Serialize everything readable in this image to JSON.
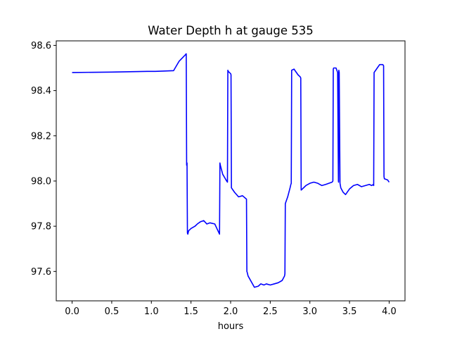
{
  "chart_data": {
    "type": "line",
    "title": "Water Depth h at gauge 535",
    "xlabel": "hours",
    "ylabel": "",
    "xlim": [
      -0.2,
      4.2
    ],
    "ylim": [
      97.47,
      98.62
    ],
    "xticks": [
      0.0,
      0.5,
      1.0,
      1.5,
      2.0,
      2.5,
      3.0,
      3.5,
      4.0
    ],
    "xtick_labels": [
      "0.0",
      "0.5",
      "1.0",
      "1.5",
      "2.0",
      "2.5",
      "3.0",
      "3.5",
      "4.0"
    ],
    "yticks": [
      97.6,
      97.8,
      98.0,
      98.2,
      98.4,
      98.6
    ],
    "ytick_labels": [
      "97.6",
      "97.8",
      "98.0",
      "98.2",
      "98.4",
      "98.6"
    ],
    "grid": false,
    "legend": "none",
    "series": [
      {
        "color": "#0000ff",
        "x": [
          0.0,
          0.5,
          0.95,
          1.05,
          1.28,
          1.3,
          1.35,
          1.42,
          1.44,
          1.445,
          1.45,
          1.455,
          1.46,
          1.47,
          1.5,
          1.55,
          1.58,
          1.62,
          1.66,
          1.7,
          1.74,
          1.8,
          1.82,
          1.86,
          1.865,
          1.87,
          1.9,
          1.95,
          1.96,
          1.965,
          1.97,
          2.0,
          2.005,
          2.01,
          2.05,
          2.1,
          2.15,
          2.2,
          2.205,
          2.21,
          2.22,
          2.3,
          2.35,
          2.38,
          2.42,
          2.45,
          2.5,
          2.55,
          2.6,
          2.65,
          2.68,
          2.685,
          2.69,
          2.72,
          2.75,
          2.76,
          2.765,
          2.77,
          2.8,
          2.85,
          2.88,
          2.885,
          2.89,
          2.95,
          3.0,
          3.05,
          3.1,
          3.15,
          3.2,
          3.28,
          3.29,
          3.295,
          3.3,
          3.33,
          3.35,
          3.36,
          3.362,
          3.365,
          3.37,
          3.38,
          3.385,
          3.39,
          3.42,
          3.45,
          3.5,
          3.55,
          3.6,
          3.65,
          3.7,
          3.75,
          3.78,
          3.8,
          3.805,
          3.81,
          3.85,
          3.88,
          3.9,
          3.92,
          3.93,
          3.935,
          3.94,
          3.98,
          4.0
        ],
        "y": [
          98.48,
          98.482,
          98.485,
          98.485,
          98.488,
          98.5,
          98.53,
          98.555,
          98.563,
          98.07,
          98.08,
          97.77,
          97.765,
          97.78,
          97.79,
          97.8,
          97.81,
          97.82,
          97.825,
          97.81,
          97.815,
          97.81,
          97.795,
          97.765,
          98.08,
          98.07,
          98.03,
          98.0,
          97.995,
          98.49,
          98.485,
          98.475,
          98.47,
          97.97,
          97.95,
          97.93,
          97.935,
          97.92,
          97.6,
          97.595,
          97.58,
          97.53,
          97.535,
          97.545,
          97.54,
          97.545,
          97.54,
          97.545,
          97.55,
          97.56,
          97.58,
          97.59,
          97.9,
          97.93,
          97.97,
          97.985,
          97.99,
          98.49,
          98.495,
          98.47,
          98.46,
          98.455,
          97.96,
          97.98,
          97.99,
          97.995,
          97.99,
          97.98,
          97.985,
          97.995,
          98.0,
          98.495,
          98.5,
          98.5,
          98.48,
          98.0,
          97.995,
          98.49,
          98.48,
          97.99,
          97.98,
          97.97,
          97.95,
          97.94,
          97.965,
          97.98,
          97.985,
          97.975,
          97.98,
          97.985,
          97.98,
          97.985,
          97.98,
          98.48,
          98.5,
          98.515,
          98.515,
          98.515,
          98.51,
          98.02,
          98.01,
          98.005,
          97.995
        ]
      }
    ]
  }
}
